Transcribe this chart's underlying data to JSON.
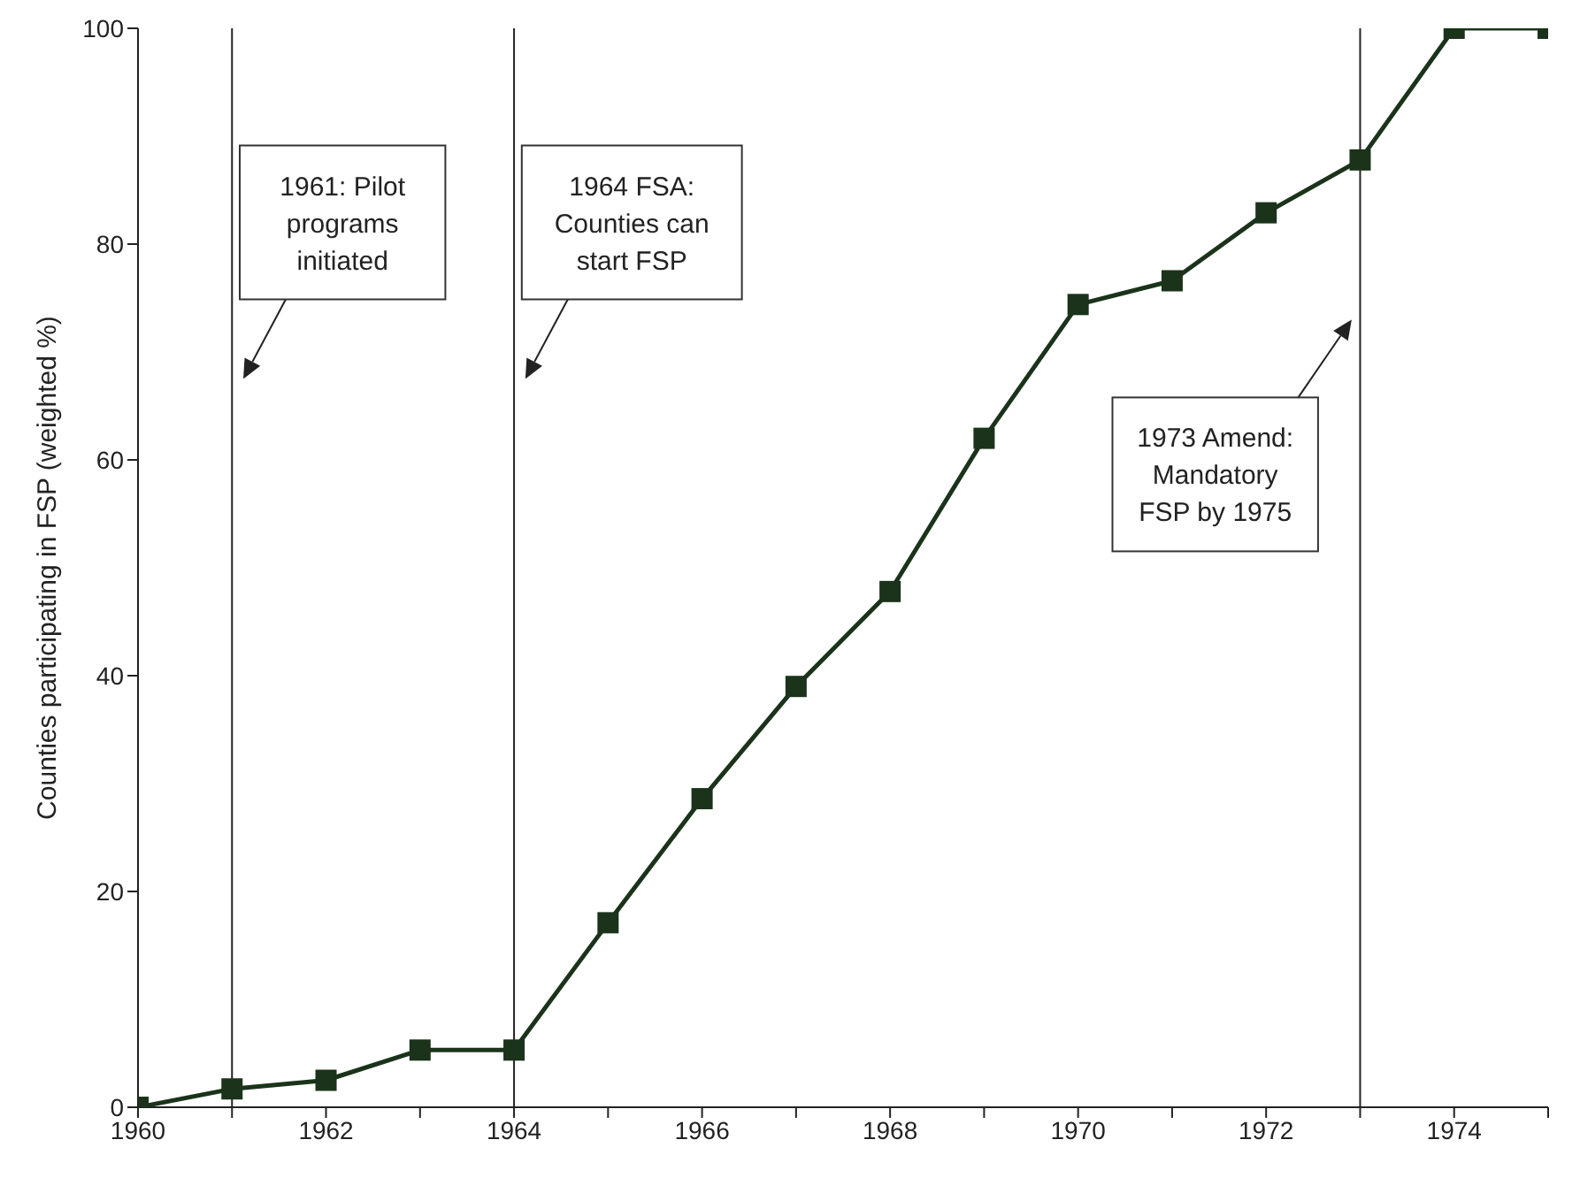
{
  "chart_data": {
    "type": "line",
    "ylabel": "Counties participating in FSP (weighted %)",
    "x": [
      1960,
      1961,
      1962,
      1963,
      1964,
      1965,
      1966,
      1967,
      1968,
      1969,
      1970,
      1971,
      1972,
      1973,
      1974,
      1975
    ],
    "series": [
      {
        "color": "#1a331a",
        "values": [
          0,
          1.7,
          2.5,
          5.3,
          5.3,
          17.1,
          28.6,
          39.0,
          47.8,
          62.0,
          74.4,
          76.6,
          82.9,
          87.8,
          100,
          100
        ]
      }
    ],
    "xlim": [
      1960,
      1975
    ],
    "xticks": [
      1960,
      {
        "value": 1961,
        "label": null
      },
      1962,
      {
        "value": 1963,
        "label": null
      },
      1964,
      {
        "value": 1965,
        "label": null
      },
      1966,
      {
        "value": 1967,
        "label": null
      },
      1968,
      {
        "value": 1969,
        "label": null
      },
      1970,
      {
        "value": 1971,
        "label": null
      },
      1972,
      {
        "value": 1973,
        "label": null
      },
      1974,
      {
        "value": 1975,
        "label": null
      }
    ],
    "ylim": [
      0,
      100
    ],
    "yticks": [
      0,
      20,
      40,
      60,
      80,
      100
    ],
    "marker": "square",
    "line_style": "solid",
    "ref_lines": [
      {
        "axis": "x",
        "value": 1961,
        "label": null,
        "color": "#222222"
      },
      {
        "axis": "x",
        "value": 1964,
        "label": null,
        "color": "#222222"
      },
      {
        "axis": "x",
        "value": 1973,
        "label": null,
        "color": "#222222"
      }
    ],
    "annotations": [
      "1961: Pilot\nprograms\ninitiated",
      "1964 FSA:\nCounties can\nstart FSP",
      "1973 Amend:\nMandatory\nFSP by 1975"
    ]
  }
}
